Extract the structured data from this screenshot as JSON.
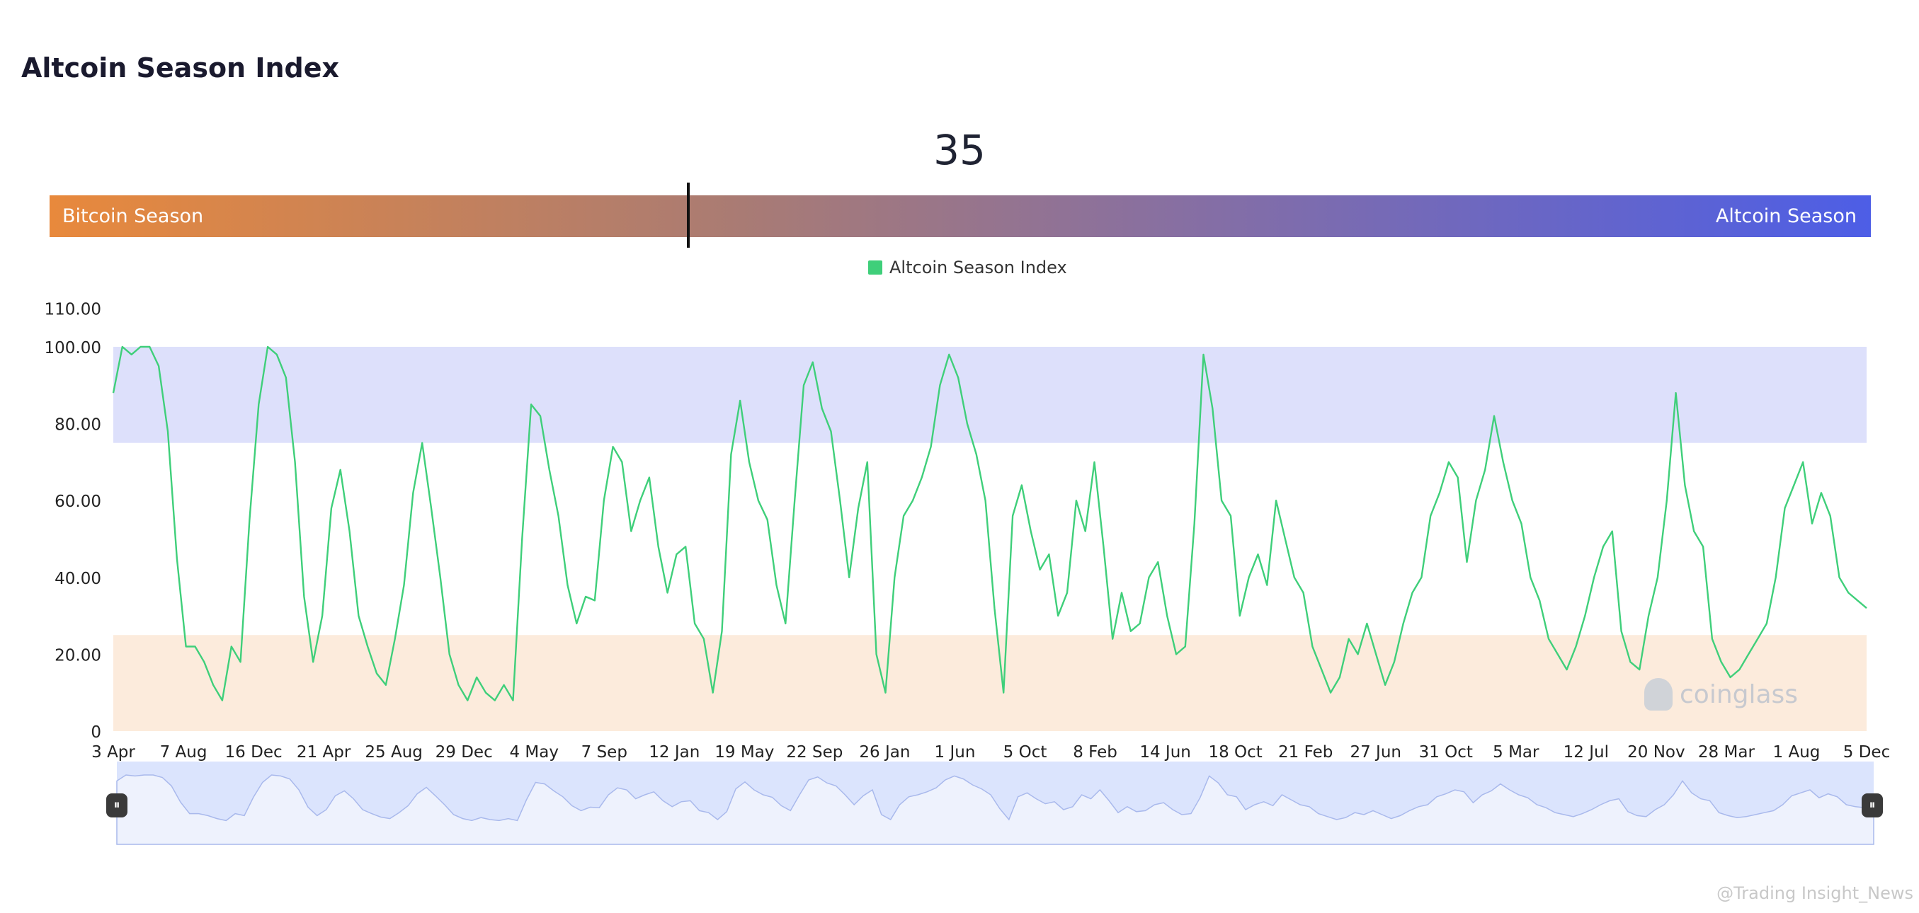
{
  "header": {
    "title": "Altcoin Season Index"
  },
  "gauge": {
    "value": "35",
    "left_label": "Bitcoin Season",
    "right_label": "Altcoin Season"
  },
  "legend": {
    "label": "Altcoin Season Index"
  },
  "watermark": {
    "brand": "coinglass"
  },
  "credit": "@Trading Insight_News",
  "colors": {
    "line": "#3fcf7a",
    "altcoin_zone": "#dde0fb",
    "bitcoin_zone": "#fcebdc",
    "navigator": "#dbe4fd"
  },
  "chart_data": {
    "type": "line",
    "series": [
      {
        "name": "Altcoin Season Index"
      }
    ],
    "ylim": [
      0,
      110
    ],
    "yticks": [
      "0",
      "20.00",
      "40.00",
      "60.00",
      "80.00",
      "100.00",
      "110.00"
    ],
    "yticks_values": [
      0,
      20,
      40,
      60,
      80,
      100,
      110
    ],
    "xticks": [
      "3 Apr",
      "7 Aug",
      "16 Dec",
      "21 Apr",
      "25 Aug",
      "29 Dec",
      "4 May",
      "7 Sep",
      "12 Jan",
      "19 May",
      "22 Sep",
      "26 Jan",
      "1 Jun",
      "5 Oct",
      "8 Feb",
      "14 Jun",
      "18 Oct",
      "21 Feb",
      "27 Jun",
      "31 Oct",
      "5 Mar",
      "12 Jul",
      "20 Nov",
      "28 Mar",
      "1 Aug",
      "5 Dec"
    ],
    "bands": [
      {
        "name": "Altcoin Season",
        "from": 75,
        "to": 100
      },
      {
        "name": "Bitcoin Season",
        "from": 0,
        "to": 25
      }
    ],
    "grid": false,
    "legend_position": "top-center",
    "values": [
      88,
      100,
      98,
      100,
      100,
      95,
      78,
      45,
      22,
      22,
      18,
      12,
      8,
      22,
      18,
      55,
      85,
      100,
      98,
      92,
      70,
      35,
      18,
      30,
      58,
      68,
      52,
      30,
      22,
      15,
      12,
      24,
      38,
      62,
      75,
      58,
      40,
      20,
      12,
      8,
      14,
      10,
      8,
      12,
      8,
      50,
      85,
      82,
      68,
      56,
      38,
      28,
      35,
      34,
      60,
      74,
      70,
      52,
      60,
      66,
      48,
      36,
      46,
      48,
      28,
      24,
      10,
      26,
      72,
      86,
      70,
      60,
      55,
      38,
      28,
      60,
      90,
      96,
      84,
      78,
      60,
      40,
      58,
      70,
      20,
      10,
      40,
      56,
      60,
      66,
      74,
      90,
      98,
      92,
      80,
      72,
      60,
      32,
      10,
      56,
      64,
      52,
      42,
      46,
      30,
      36,
      60,
      52,
      70,
      48,
      24,
      36,
      26,
      28,
      40,
      44,
      30,
      20,
      22,
      54,
      98,
      84,
      60,
      56,
      30,
      40,
      46,
      38,
      60,
      50,
      40,
      36,
      22,
      16,
      10,
      14,
      24,
      20,
      28,
      20,
      12,
      18,
      28,
      36,
      40,
      56,
      62,
      70,
      66,
      44,
      60,
      68,
      82,
      70,
      60,
      54,
      40,
      34,
      24,
      20,
      16,
      22,
      30,
      40,
      48,
      52,
      26,
      18,
      16,
      30,
      40,
      60,
      88,
      64,
      52,
      48,
      24,
      18,
      14,
      16,
      20,
      24,
      28,
      40,
      58,
      64,
      70,
      54,
      62,
      56,
      40,
      36,
      34,
      32
    ]
  }
}
